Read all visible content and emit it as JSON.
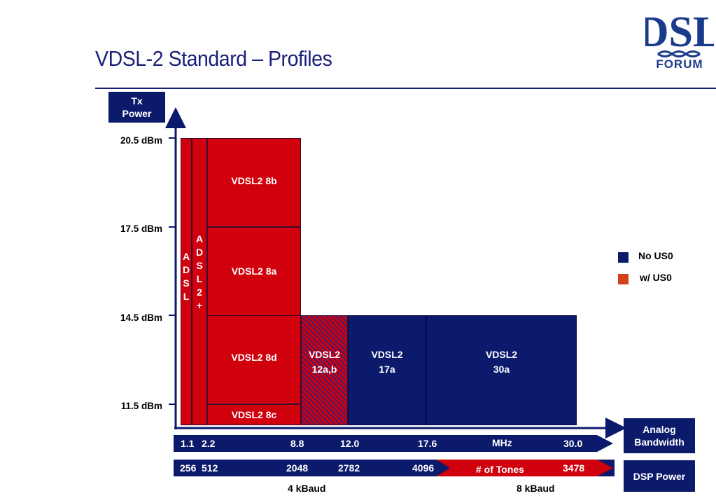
{
  "title": "VDSL-2 Standard – Profiles",
  "logo": {
    "main": "DSL",
    "sub": "FORUM"
  },
  "y_axis_label": {
    "line1": "Tx",
    "line2": "Power"
  },
  "y_ticks": [
    "20.5 dBm",
    "17.5 dBm",
    "14.5 dBm",
    "11.5 dBm"
  ],
  "profiles": {
    "adsl": "A\nD\nS\nL",
    "adsl2plus": "A\nD\nS\nL\n2\n+",
    "vdsl2_8b": "VDSL2 8b",
    "vdsl2_8a": "VDSL2 8a",
    "vdsl2_8d": "VDSL2 8d",
    "vdsl2_8c": "VDSL2 8c",
    "vdsl2_12": {
      "line1": "VDSL2",
      "line2": "12a,b"
    },
    "vdsl2_17": {
      "line1": "VDSL2",
      "line2": "17a"
    },
    "vdsl2_30": {
      "line1": "VDSL2",
      "line2": "30a"
    }
  },
  "legend": [
    {
      "label": "No US0",
      "color": "#0c1a6c"
    },
    {
      "label": "w/ US0",
      "color": "#d3401a"
    }
  ],
  "x_axis_label": {
    "line1": "Analog",
    "line2": "Bandwidth"
  },
  "freq_ticks": [
    "1.1",
    "2.2",
    "8.8",
    "12.0",
    "17.6",
    "MHz",
    "30.0"
  ],
  "tone_ticks": [
    "256",
    "512",
    "2048",
    "2782",
    "4096",
    "# of Tones",
    "3478"
  ],
  "dsp_label": "DSP Power",
  "baud_labels": [
    "4 kBaud",
    "8 kBaud"
  ],
  "colors": {
    "red": "#d0000c",
    "navy": "#0c1a6c"
  }
}
